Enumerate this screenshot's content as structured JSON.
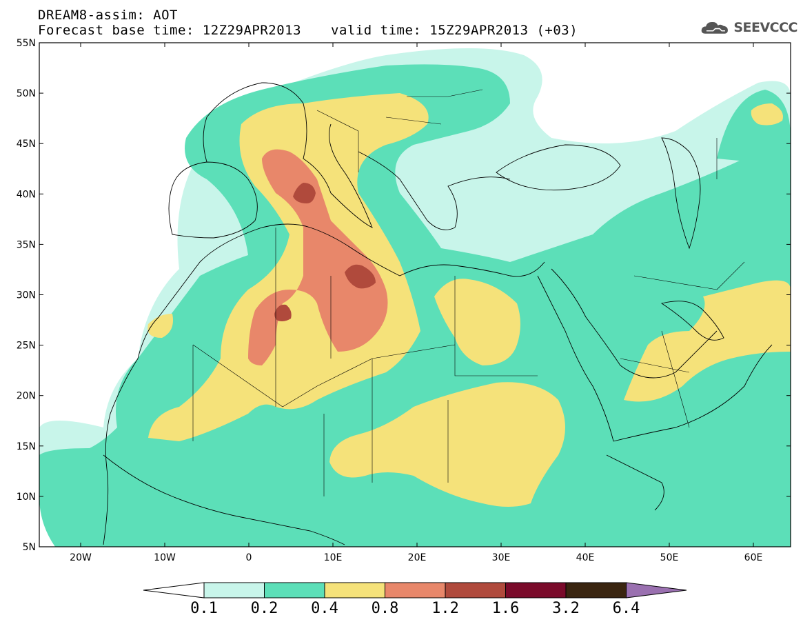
{
  "header": {
    "title_line1": "DREAM8-assim: AOT",
    "title_line2": "Forecast base time: 12Z29APR2013",
    "valid_time": "valid time: 15Z29APR2013 (+03)",
    "logo_text": "SEEVCCC"
  },
  "map": {
    "lat_labels": [
      "55N",
      "50N",
      "45N",
      "40N",
      "35N",
      "30N",
      "25N",
      "20N",
      "15N",
      "10N",
      "5N"
    ],
    "lon_labels": [
      "20W",
      "10W",
      "0",
      "10E",
      "20E",
      "30E",
      "40E",
      "50E",
      "60E"
    ],
    "colors": {
      "c01": "#c8f5ea",
      "c02": "#5cdfb8",
      "c04": "#f5e27a",
      "c08": "#e8876a",
      "c12": "#b04a3c",
      "c16": "#7a0a2a",
      "c32": "#3a2510",
      "c64": "#9a70b0"
    }
  },
  "legend": {
    "labels": [
      "0.1",
      "0.2",
      "0.4",
      "0.8",
      "1.2",
      "1.6",
      "3.2",
      "6.4"
    ]
  }
}
